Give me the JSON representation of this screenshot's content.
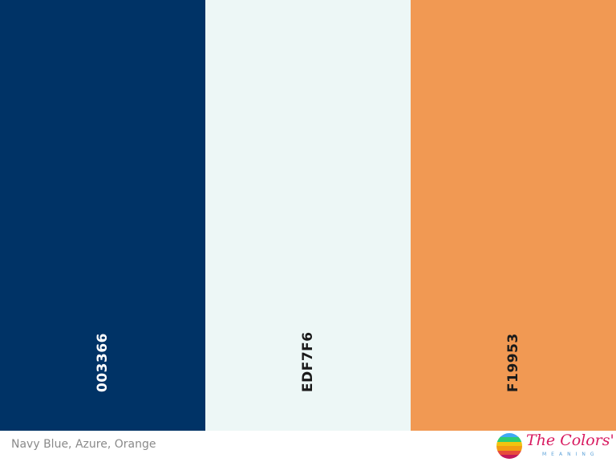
{
  "swatches": [
    {
      "label": "003366",
      "color": "#003366"
    },
    {
      "label": "EDF7F6",
      "color": "#edf7f6"
    },
    {
      "label": "F19953",
      "color": "#f19953"
    }
  ],
  "caption": "Navy Blue, Azure, Orange",
  "logo": {
    "title": "The Colors'",
    "subtitle": "MEANING"
  }
}
